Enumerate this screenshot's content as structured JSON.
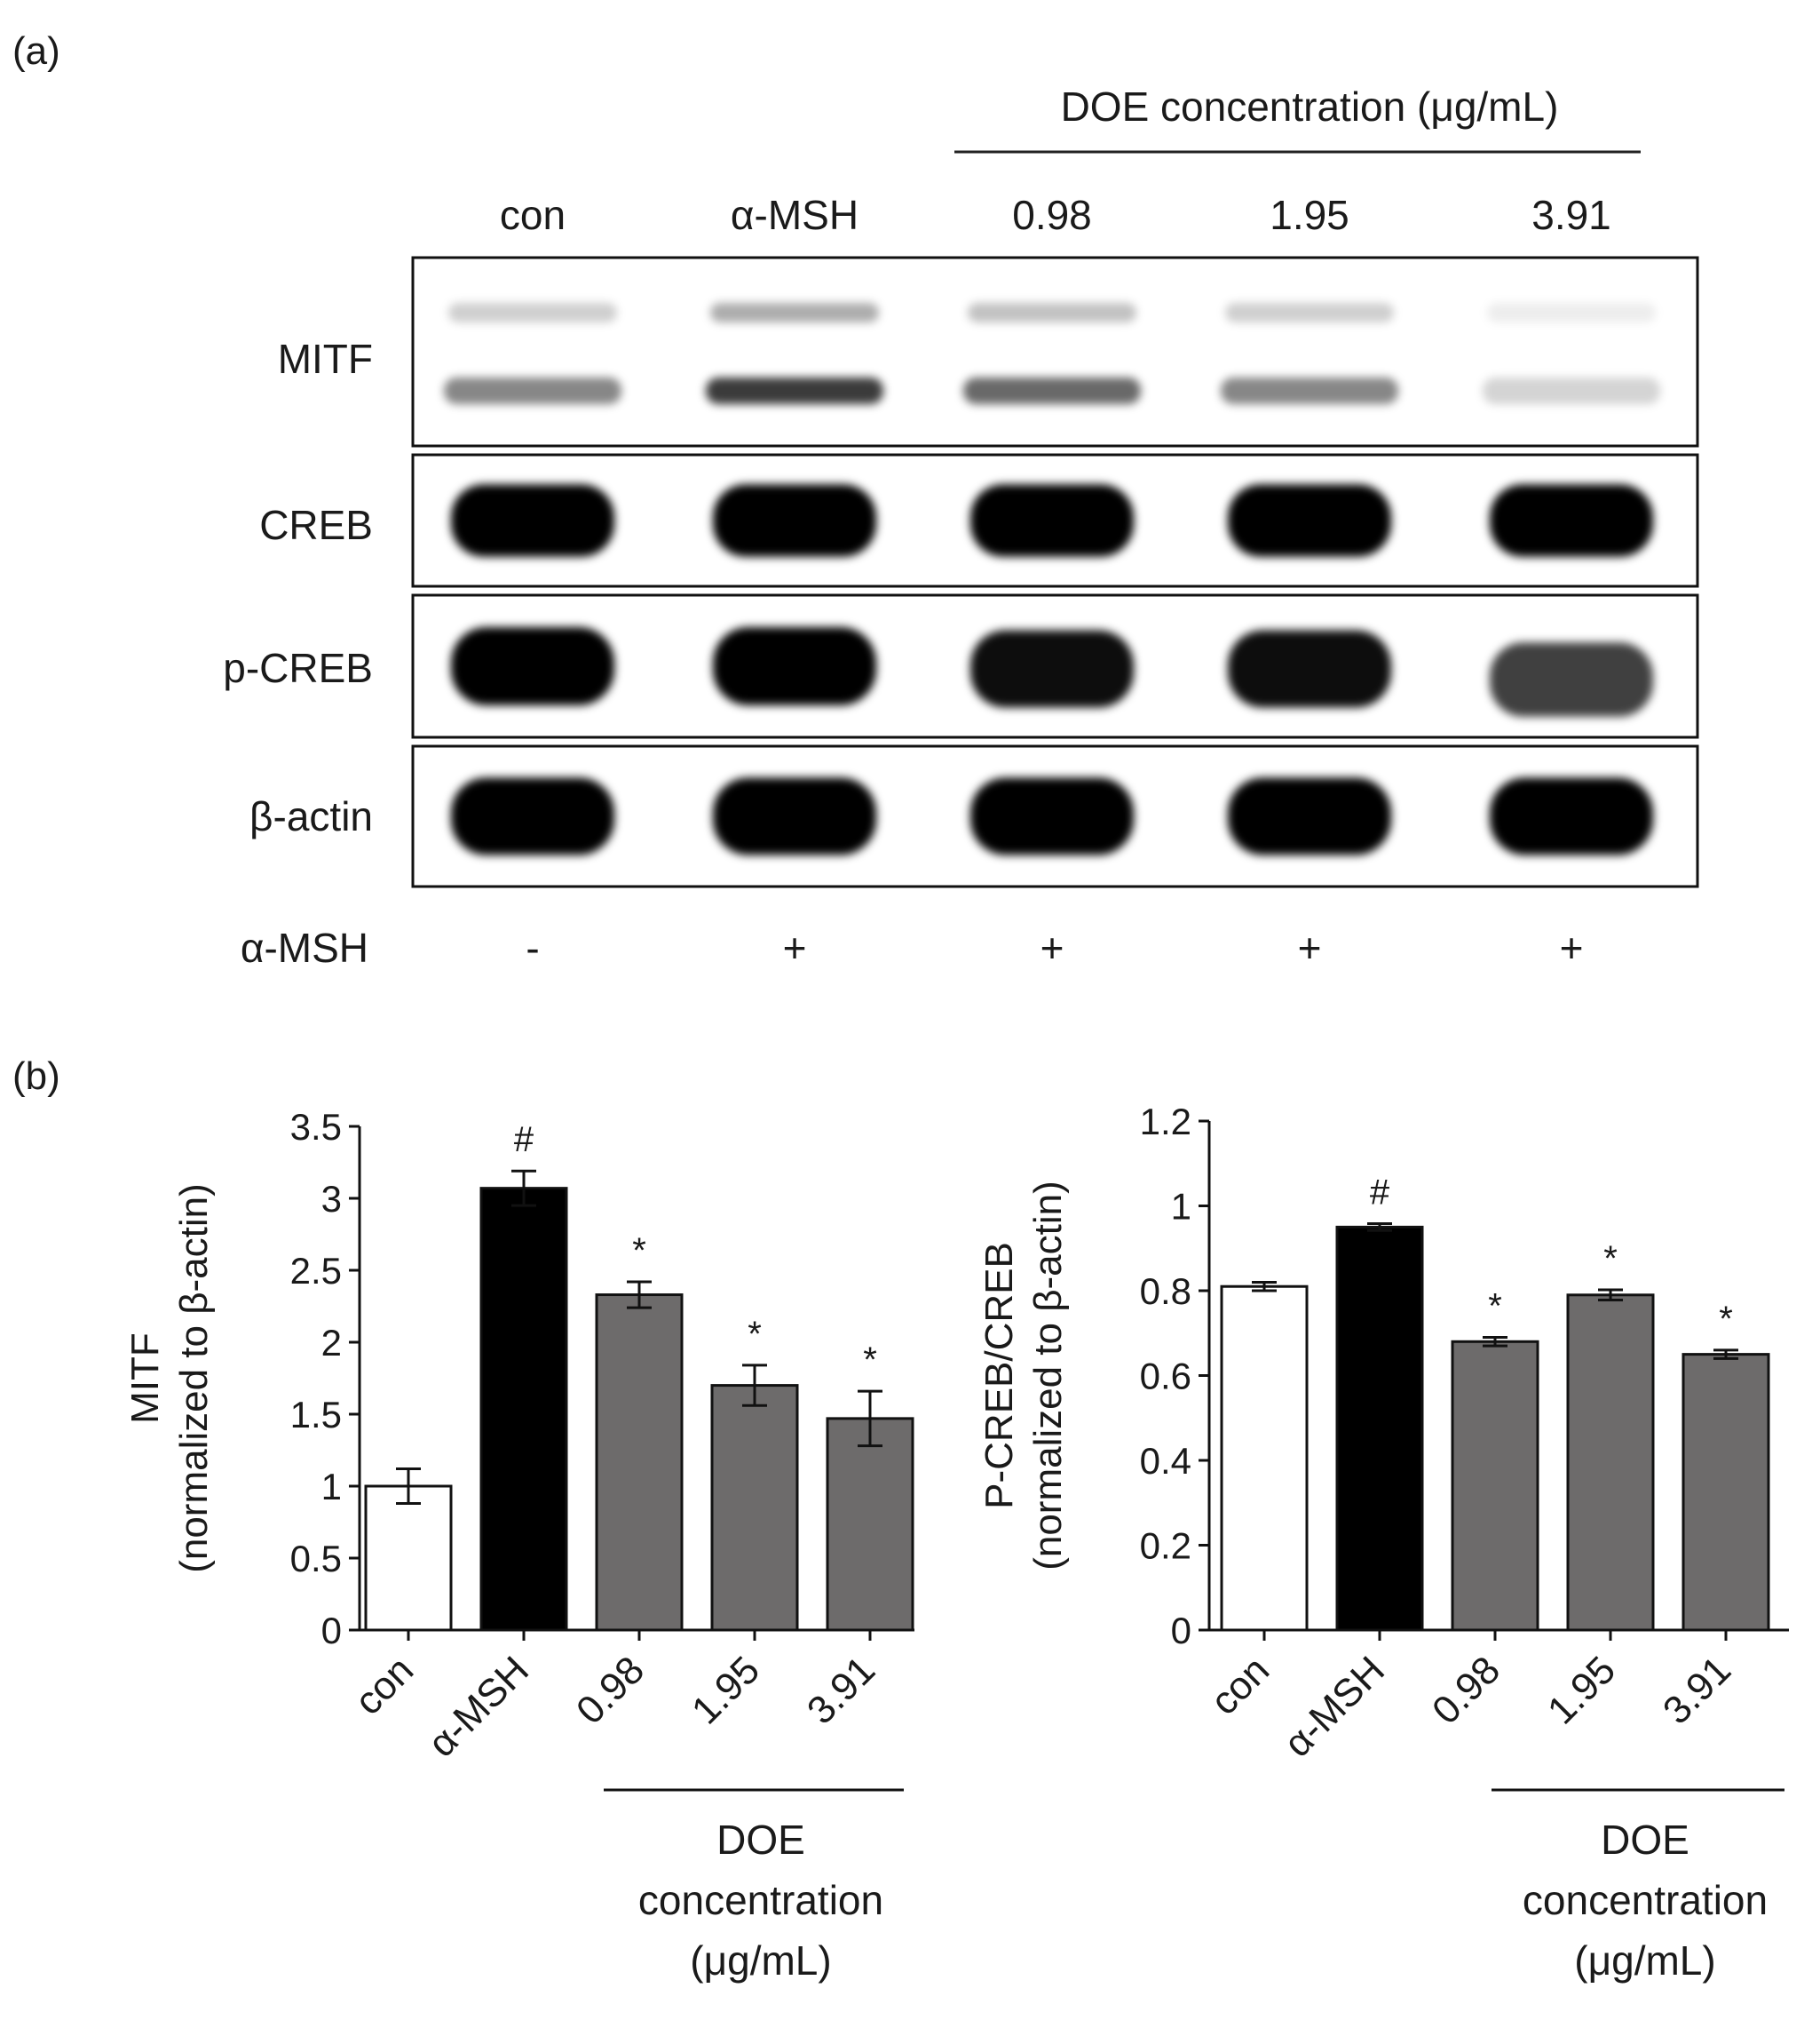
{
  "panel_a": {
    "label": "(a)",
    "group_label": "DOE concentration (μg/mL)",
    "lanes": [
      "con",
      "α-MSH",
      "0.98",
      "1.95",
      "3.91"
    ],
    "blots": [
      {
        "name": "MITF",
        "intensity": [
          0.55,
          0.9,
          0.7,
          0.55,
          0.2
        ]
      },
      {
        "name": "CREB",
        "intensity": [
          1,
          1,
          1,
          1,
          1
        ]
      },
      {
        "name": "p-CREB",
        "intensity": [
          1,
          1,
          0.95,
          0.95,
          0.75
        ]
      },
      {
        "name": "β-actin",
        "intensity": [
          1,
          1,
          1,
          1,
          1
        ]
      }
    ],
    "treatment_label": "α-MSH",
    "treatment": [
      "-",
      "+",
      "+",
      "+",
      "+"
    ]
  },
  "panel_b": {
    "label": "(b)",
    "group_label_lines": [
      "DOE",
      "concentration",
      "(μg/mL)"
    ]
  },
  "colors": {
    "control": "#ffffff",
    "alpha_msh": "#000000",
    "doe": "#6d6b6b"
  },
  "chart_data": [
    {
      "type": "bar",
      "categories": [
        "con",
        "α-MSH",
        "0.98",
        "1.95",
        "3.91"
      ],
      "values": [
        1.0,
        3.07,
        2.33,
        1.7,
        1.47
      ],
      "errors": [
        0.12,
        0.12,
        0.09,
        0.14,
        0.19
      ],
      "significance": [
        "",
        "#",
        "*",
        "*",
        "*"
      ],
      "ylabel_lines": [
        "MITF",
        "(normalized to β-actin)"
      ],
      "ylim": [
        0,
        3.5
      ],
      "yticks": [
        0,
        0.5,
        1,
        1.5,
        2,
        2.5,
        3,
        3.5
      ],
      "ytick_labels": [
        "0",
        "0.5",
        "1",
        "1.5",
        "2",
        "2.5",
        "3",
        "3.5"
      ],
      "grid": false
    },
    {
      "type": "bar",
      "categories": [
        "con",
        "α-MSH",
        "0.98",
        "1.95",
        "3.91"
      ],
      "values": [
        0.81,
        0.95,
        0.68,
        0.79,
        0.65
      ],
      "errors": [
        0.01,
        0.008,
        0.01,
        0.012,
        0.01
      ],
      "significance": [
        "",
        "#",
        "*",
        "*",
        "*"
      ],
      "ylabel_lines": [
        "P-CREB/CREB",
        "(normalized to β-actin)"
      ],
      "ylim": [
        0,
        1.2
      ],
      "yticks": [
        0,
        0.2,
        0.4,
        0.6,
        0.8,
        1.0,
        1.2
      ],
      "ytick_labels": [
        "0",
        "0.2",
        "0.4",
        "0.6",
        "0.8",
        "1",
        "1.2"
      ],
      "grid": false
    }
  ]
}
